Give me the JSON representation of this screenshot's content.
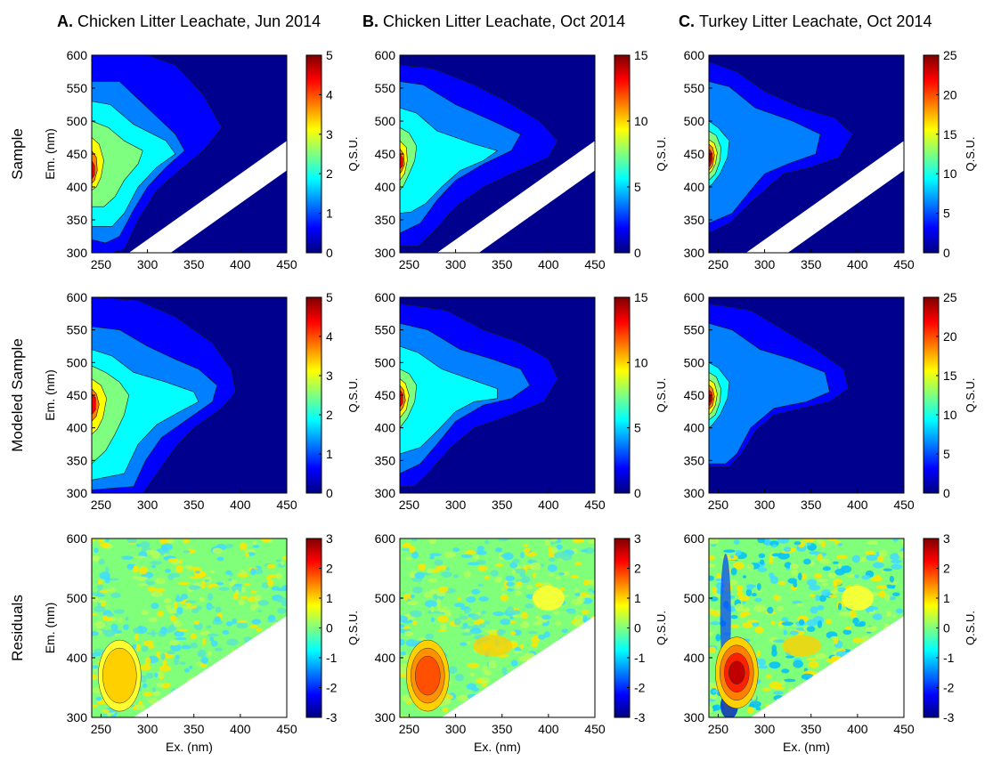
{
  "colors": {
    "background_blue": "#00008f",
    "diagonal_blank": "#ffffff",
    "colormap": [
      "#00007f",
      "#0000ff",
      "#007fff",
      "#00ffff",
      "#7fff7f",
      "#ffff00",
      "#ff7f00",
      "#ff0000",
      "#7f0000"
    ]
  },
  "columns": [
    {
      "letter": "A.",
      "title": "Chicken Litter Leachate, Jun 2014"
    },
    {
      "letter": "B.",
      "title": "Chicken Litter Leachate, Oct 2014"
    },
    {
      "letter": "C.",
      "title": "Turkey Litter Leachate, Oct 2014"
    }
  ],
  "rows": [
    {
      "label": "Sample"
    },
    {
      "label": "Modeled Sample"
    },
    {
      "label": "Residuals"
    }
  ],
  "chart_data": [
    {
      "type": "heatmap",
      "panel": "A-sample",
      "xlabel": "",
      "ylabel": "Em. (nm)",
      "xlim": [
        240,
        450
      ],
      "ylim": [
        300,
        600
      ],
      "xticks": [
        250,
        300,
        350,
        400,
        450
      ],
      "yticks": [
        300,
        350,
        400,
        450,
        500,
        550,
        600
      ],
      "colorbar": {
        "label": "Q.S.U.",
        "min": 0,
        "max": 5,
        "ticks": [
          0,
          1,
          2,
          3,
          4,
          5
        ]
      },
      "peaks": [
        {
          "ex": 240,
          "em": 420,
          "value": 4.8
        }
      ]
    },
    {
      "type": "heatmap",
      "panel": "B-sample",
      "xlabel": "",
      "ylabel": "",
      "xlim": [
        240,
        450
      ],
      "ylim": [
        300,
        600
      ],
      "xticks": [
        250,
        300,
        350,
        400,
        450
      ],
      "yticks": [
        300,
        350,
        400,
        450,
        500,
        550,
        600
      ],
      "colorbar": {
        "label": "Q.S.U.",
        "min": 0,
        "max": 15,
        "ticks": [
          0,
          5,
          10,
          15
        ]
      },
      "peaks": [
        {
          "ex": 240,
          "em": 440,
          "value": 14
        }
      ]
    },
    {
      "type": "heatmap",
      "panel": "C-sample",
      "xlabel": "",
      "ylabel": "",
      "xlim": [
        240,
        450
      ],
      "ylim": [
        300,
        600
      ],
      "xticks": [
        250,
        300,
        350,
        400,
        450
      ],
      "yticks": [
        300,
        350,
        400,
        450,
        500,
        550,
        600
      ],
      "colorbar": {
        "label": "Q.S.U.",
        "min": 0,
        "max": 25,
        "ticks": [
          0,
          5,
          10,
          15,
          20,
          25
        ]
      },
      "peaks": [
        {
          "ex": 240,
          "em": 440,
          "value": 23
        }
      ]
    },
    {
      "type": "heatmap",
      "panel": "A-modeled",
      "xlabel": "",
      "ylabel": "Em. (nm)",
      "xlim": [
        240,
        450
      ],
      "ylim": [
        300,
        600
      ],
      "xticks": [
        250,
        300,
        350,
        400,
        450
      ],
      "yticks": [
        300,
        350,
        400,
        450,
        500,
        550,
        600
      ],
      "colorbar": {
        "label": "Q.S.U.",
        "min": 0,
        "max": 5,
        "ticks": [
          0,
          1,
          2,
          3,
          4,
          5
        ]
      },
      "peaks": [
        {
          "ex": 240,
          "em": 440,
          "value": 4.6
        }
      ]
    },
    {
      "type": "heatmap",
      "panel": "B-modeled",
      "xlabel": "",
      "ylabel": "",
      "xlim": [
        240,
        450
      ],
      "ylim": [
        300,
        600
      ],
      "xticks": [
        250,
        300,
        350,
        400,
        450
      ],
      "yticks": [
        300,
        350,
        400,
        450,
        500,
        550,
        600
      ],
      "colorbar": {
        "label": "Q.S.U.",
        "min": 0,
        "max": 15,
        "ticks": [
          0,
          5,
          10,
          15
        ]
      },
      "peaks": [
        {
          "ex": 240,
          "em": 445,
          "value": 13.5
        }
      ]
    },
    {
      "type": "heatmap",
      "panel": "C-modeled",
      "xlabel": "",
      "ylabel": "",
      "xlim": [
        240,
        450
      ],
      "ylim": [
        300,
        600
      ],
      "xticks": [
        250,
        300,
        350,
        400,
        450
      ],
      "yticks": [
        300,
        350,
        400,
        450,
        500,
        550,
        600
      ],
      "colorbar": {
        "label": "Q.S.U.",
        "min": 0,
        "max": 25,
        "ticks": [
          0,
          5,
          10,
          15,
          20,
          25
        ]
      },
      "peaks": [
        {
          "ex": 240,
          "em": 445,
          "value": 22
        }
      ]
    },
    {
      "type": "heatmap",
      "panel": "A-residuals",
      "xlabel": "Ex. (nm)",
      "ylabel": "Em. (nm)",
      "xlim": [
        240,
        450
      ],
      "ylim": [
        300,
        600
      ],
      "xticks": [
        250,
        300,
        350,
        400,
        450
      ],
      "yticks": [
        300,
        400,
        500,
        600
      ],
      "colorbar": {
        "label": "Q.S.U.",
        "min": -3,
        "max": 3,
        "ticks": [
          -3,
          -2,
          -1,
          0,
          1,
          2,
          3
        ]
      },
      "peaks": [
        {
          "ex": 270,
          "em": 370,
          "value": 0.9
        }
      ]
    },
    {
      "type": "heatmap",
      "panel": "B-residuals",
      "xlabel": "Ex. (nm)",
      "ylabel": "",
      "xlim": [
        240,
        450
      ],
      "ylim": [
        300,
        600
      ],
      "xticks": [
        250,
        300,
        350,
        400,
        450
      ],
      "yticks": [
        300,
        400,
        500,
        600
      ],
      "colorbar": {
        "label": "Q.S.U.",
        "min": -3,
        "max": 3,
        "ticks": [
          -3,
          -2,
          -1,
          0,
          1,
          2,
          3
        ]
      },
      "peaks": [
        {
          "ex": 270,
          "em": 370,
          "value": 1.8
        }
      ]
    },
    {
      "type": "heatmap",
      "panel": "C-residuals",
      "xlabel": "Ex. (nm)",
      "ylabel": "",
      "xlim": [
        240,
        450
      ],
      "ylim": [
        300,
        600
      ],
      "xticks": [
        250,
        300,
        350,
        400,
        450
      ],
      "yticks": [
        300,
        400,
        500,
        600
      ],
      "colorbar": {
        "label": "Q.S.U.",
        "min": -3,
        "max": 3,
        "ticks": [
          -3,
          -2,
          -1,
          0,
          1,
          2,
          3
        ]
      },
      "peaks": [
        {
          "ex": 270,
          "em": 375,
          "value": 2.6
        }
      ]
    }
  ]
}
